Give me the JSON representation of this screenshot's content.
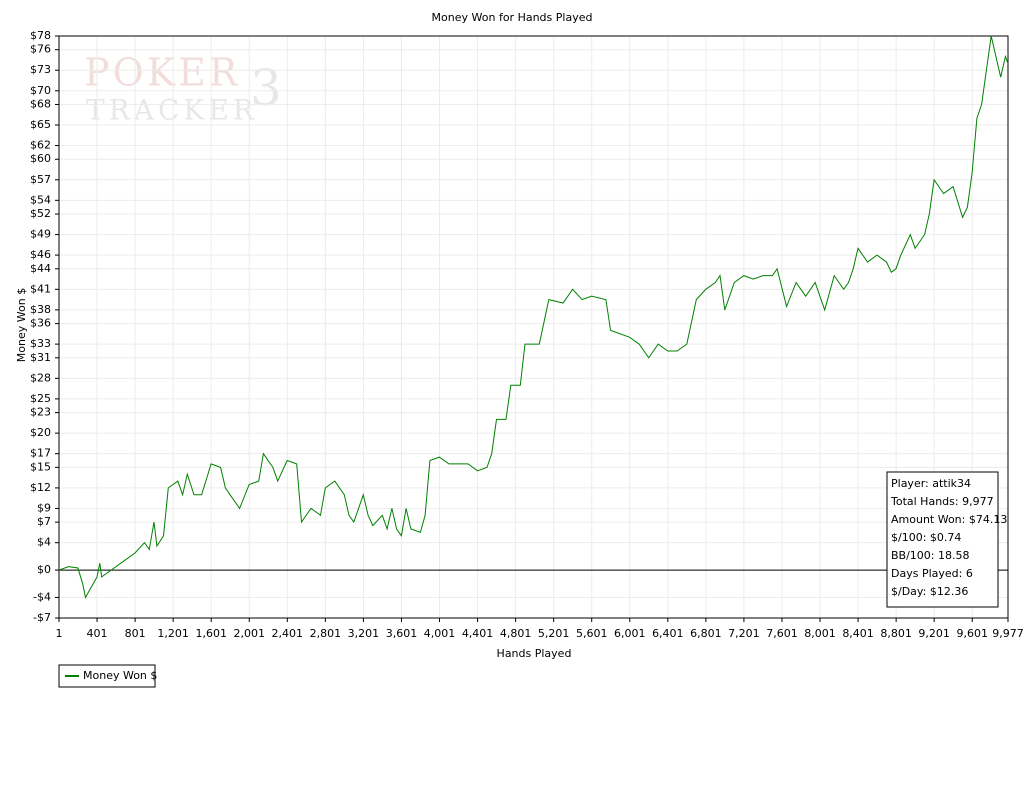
{
  "chart_data": {
    "type": "line",
    "title": "Money Won for Hands Played",
    "x_label": "Hands Played",
    "y_label": "Money Won $",
    "watermark": [
      "POKER",
      "TRACKER",
      "3"
    ],
    "annotations": [
      "Player: attik34",
      "Total Hands: 9,977",
      "Amount Won: $74.13",
      "$/100: $0.74",
      "BB/100: 18.58",
      "Days Played: 6",
      "$/Day: $12.36"
    ],
    "legend": "bottom-left",
    "grid": true,
    "xlim": [
      1,
      9977
    ],
    "ylim": [
      -7,
      78
    ],
    "xticks": [
      1,
      401,
      801,
      {
        "value": 1201,
        "label": "1,201"
      },
      {
        "value": 1601,
        "label": "1,601"
      },
      {
        "value": 2001,
        "label": "2,001"
      },
      {
        "value": 2401,
        "label": "2,401"
      },
      {
        "value": 2801,
        "label": "2,801"
      },
      {
        "value": 3201,
        "label": "3,201"
      },
      {
        "value": 3601,
        "label": "3,601"
      },
      {
        "value": 4001,
        "label": "4,001"
      },
      {
        "value": 4401,
        "label": "4,401"
      },
      {
        "value": 4801,
        "label": "4,801"
      },
      {
        "value": 5201,
        "label": "5,201"
      },
      {
        "value": 5601,
        "label": "5,601"
      },
      {
        "value": 6001,
        "label": "6,001"
      },
      {
        "value": 6401,
        "label": "6,401"
      },
      {
        "value": 6801,
        "label": "6,801"
      },
      {
        "value": 7201,
        "label": "7,201"
      },
      {
        "value": 7601,
        "label": "7,601"
      },
      {
        "value": 8001,
        "label": "8,001"
      },
      {
        "value": 8401,
        "label": "8,401"
      },
      {
        "value": 8801,
        "label": "8,801"
      },
      {
        "value": 9201,
        "label": "9,201"
      },
      {
        "value": 9601,
        "label": "9,601"
      },
      {
        "value": 9977,
        "label": "9,977"
      }
    ],
    "yticks": [
      {
        "value": 78,
        "label": "$78"
      },
      {
        "value": 76,
        "label": "$76"
      },
      {
        "value": 73,
        "label": "$73"
      },
      {
        "value": 70,
        "label": "$70"
      },
      {
        "value": 68,
        "label": "$68"
      },
      {
        "value": 65,
        "label": "$65"
      },
      {
        "value": 62,
        "label": "$62"
      },
      {
        "value": 60,
        "label": "$60"
      },
      {
        "value": 57,
        "label": "$57"
      },
      {
        "value": 54,
        "label": "$54"
      },
      {
        "value": 52,
        "label": "$52"
      },
      {
        "value": 49,
        "label": "$49"
      },
      {
        "value": 46,
        "label": "$46"
      },
      {
        "value": 44,
        "label": "$44"
      },
      {
        "value": 41,
        "label": "$41"
      },
      {
        "value": 38,
        "label": "$38"
      },
      {
        "value": 36,
        "label": "$36"
      },
      {
        "value": 33,
        "label": "$33"
      },
      {
        "value": 31,
        "label": "$31"
      },
      {
        "value": 28,
        "label": "$28"
      },
      {
        "value": 25,
        "label": "$25"
      },
      {
        "value": 23,
        "label": "$23"
      },
      {
        "value": 20,
        "label": "$20"
      },
      {
        "value": 17,
        "label": "$17"
      },
      {
        "value": 15,
        "label": "$15"
      },
      {
        "value": 12,
        "label": "$12"
      },
      {
        "value": 9,
        "label": "$9"
      },
      {
        "value": 7,
        "label": "$7"
      },
      {
        "value": 4,
        "label": "$4"
      },
      {
        "value": 0,
        "label": "$0"
      },
      {
        "value": -4,
        "label": "-$4"
      },
      {
        "value": -7,
        "label": "-$7"
      }
    ],
    "x": [
      1,
      100,
      200,
      250,
      280,
      320,
      400,
      430,
      450,
      600,
      700,
      800,
      900,
      950,
      1000,
      1030,
      1100,
      1150,
      1250,
      1300,
      1350,
      1420,
      1500,
      1600,
      1700,
      1750,
      1800,
      1900,
      2000,
      2100,
      2150,
      2250,
      2300,
      2400,
      2500,
      2550,
      2650,
      2750,
      2800,
      2900,
      3000,
      3050,
      3100,
      3200,
      3250,
      3300,
      3400,
      3450,
      3500,
      3550,
      3600,
      3650,
      3700,
      3800,
      3850,
      3900,
      4000,
      4100,
      4300,
      4400,
      4500,
      4550,
      4600,
      4700,
      4750,
      4850,
      4900,
      5050,
      5150,
      5300,
      5400,
      5500,
      5600,
      5750,
      5800,
      6000,
      6100,
      6200,
      6300,
      6400,
      6500,
      6600,
      6700,
      6800,
      6900,
      6950,
      7000,
      7100,
      7200,
      7300,
      7400,
      7500,
      7550,
      7650,
      7750,
      7850,
      7950,
      8000,
      8050,
      8150,
      8250,
      8300,
      8350,
      8400,
      8500,
      8600,
      8700,
      8750,
      8800,
      8850,
      8950,
      9000,
      9100,
      9150,
      9200,
      9250,
      9300,
      9400,
      9500,
      9550,
      9600,
      9650,
      9700,
      9750,
      9800,
      9850,
      9900,
      9950,
      9977
    ],
    "series": [
      {
        "name": "Money Won $",
        "color": "#008000",
        "values": [
          0,
          0.5,
          0.3,
          -2,
          -4,
          -3,
          -1,
          1,
          -1,
          0.5,
          1.5,
          2.5,
          4,
          3,
          7,
          3.5,
          5,
          12,
          13,
          11,
          14,
          11,
          11,
          15.5,
          15,
          12,
          11,
          9,
          12.5,
          13,
          17,
          15,
          13,
          16,
          15.5,
          7,
          9,
          8,
          12,
          13,
          11,
          8,
          7,
          11,
          8,
          6.5,
          8,
          6,
          9,
          6,
          5,
          9,
          6,
          5.5,
          8,
          16,
          16.5,
          15.5,
          15.5,
          14.5,
          15,
          17,
          22,
          22,
          27,
          27,
          33,
          33,
          39.5,
          39,
          41,
          39.5,
          40,
          39.5,
          35,
          34,
          33,
          31,
          33,
          32,
          32,
          33,
          39.5,
          41,
          42,
          43,
          38,
          42,
          43,
          42.5,
          43,
          43,
          44,
          38.5,
          42,
          40,
          42,
          40,
          38,
          43,
          41,
          42,
          44,
          47,
          45,
          46,
          45,
          43.5,
          44,
          46,
          49,
          47,
          49,
          52,
          57,
          56,
          55,
          56,
          51.5,
          53,
          58,
          66,
          68,
          73,
          78,
          75,
          72,
          75,
          74
        ]
      }
    ]
  }
}
